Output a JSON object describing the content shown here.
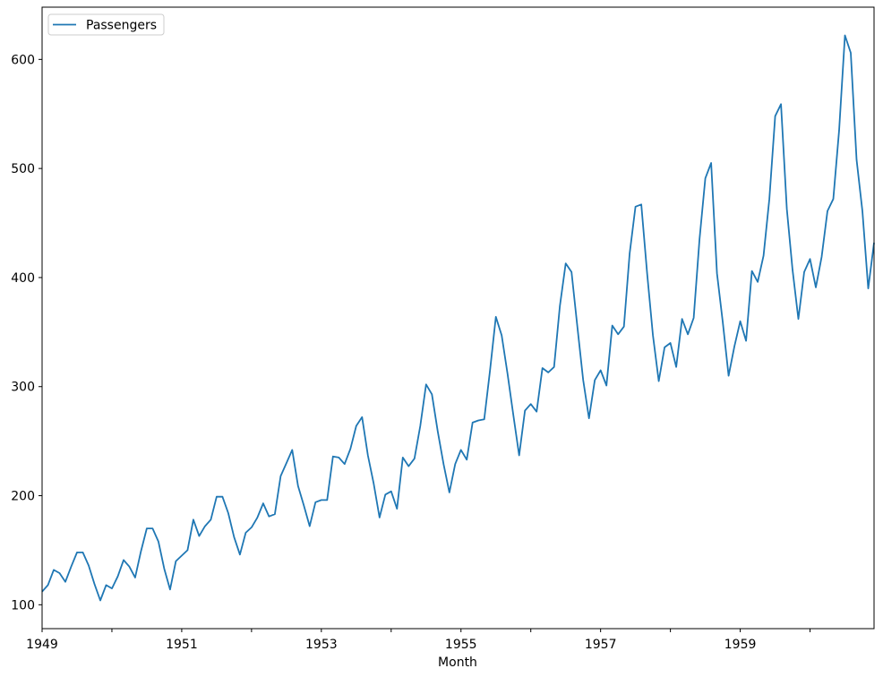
{
  "chart_data": {
    "type": "line",
    "title": "",
    "xlabel": "Month",
    "ylabel": "",
    "grid": false,
    "legend_position": "upper left",
    "line_color": "#1f77b4",
    "start_year": 1949,
    "frequency": "monthly",
    "x_range": [
      "1949-01",
      "1960-12"
    ],
    "xlim_month_index": [
      0,
      143
    ],
    "ylim": [
      78.1,
      647.9
    ],
    "x_ticks_labeled": [
      1949,
      1951,
      1953,
      1955,
      1957,
      1959
    ],
    "x_ticks_minor": [
      1950,
      1952,
      1954,
      1956,
      1958,
      1960
    ],
    "y_ticks": [
      100,
      200,
      300,
      400,
      500,
      600
    ],
    "series": [
      {
        "name": "Passengers",
        "values": [
          112,
          118,
          132,
          129,
          121,
          135,
          148,
          148,
          136,
          119,
          104,
          118,
          115,
          126,
          141,
          135,
          125,
          149,
          170,
          170,
          158,
          133,
          114,
          140,
          145,
          150,
          178,
          163,
          172,
          178,
          199,
          199,
          184,
          162,
          146,
          166,
          171,
          180,
          193,
          181,
          183,
          218,
          230,
          242,
          209,
          191,
          172,
          194,
          196,
          196,
          236,
          235,
          229,
          243,
          264,
          272,
          237,
          211,
          180,
          201,
          204,
          188,
          235,
          227,
          234,
          264,
          302,
          293,
          259,
          229,
          203,
          229,
          242,
          233,
          267,
          269,
          270,
          315,
          364,
          347,
          312,
          274,
          237,
          278,
          284,
          277,
          317,
          313,
          318,
          374,
          413,
          405,
          355,
          306,
          271,
          306,
          315,
          301,
          356,
          348,
          355,
          422,
          465,
          467,
          404,
          347,
          305,
          336,
          340,
          318,
          362,
          348,
          363,
          435,
          491,
          505,
          404,
          359,
          310,
          337,
          360,
          342,
          406,
          396,
          420,
          472,
          548,
          559,
          463,
          407,
          362,
          405,
          417,
          391,
          419,
          461,
          472,
          535,
          622,
          606,
          508,
          461,
          390,
          432
        ]
      }
    ]
  }
}
